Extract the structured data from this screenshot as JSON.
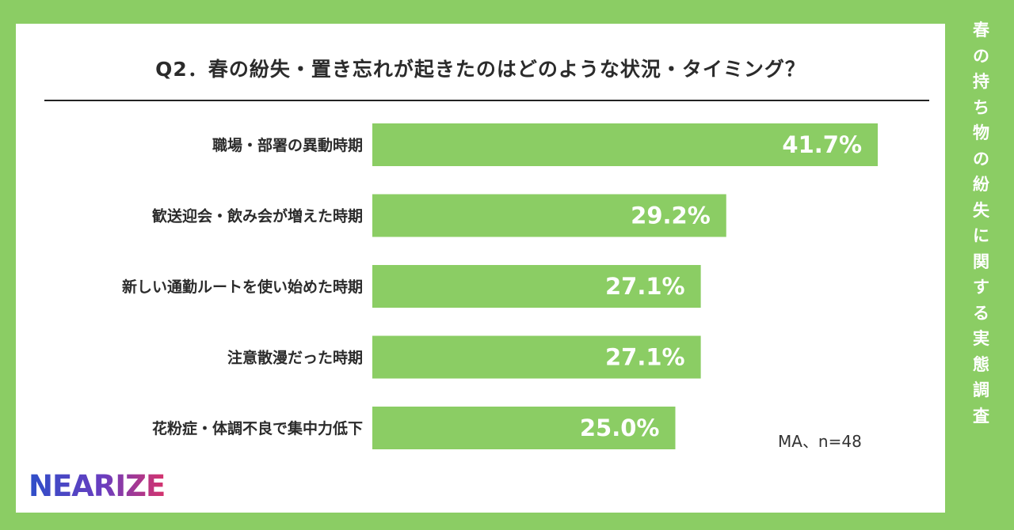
{
  "title": "Q2．春の紛失・置き忘れが起きたのはどのような状況・タイミング？",
  "note": "MA、n=48",
  "logo": "NEARIZE",
  "side_title": "春の持ち物の紛失に関する実態調査",
  "colors": {
    "background": "#8bcd64",
    "bar": "#8bcd64",
    "card": "#ffffff"
  },
  "chart_data": {
    "type": "bar",
    "orientation": "horizontal",
    "title": "Q2．春の紛失・置き忘れが起きたのはどのような状況・タイミング？",
    "categories": [
      "職場・部署の異動時期",
      "歓送迎会・飲み会が増えた時期",
      "新しい通勤ルートを使い始めた時期",
      "注意散漫だった時期",
      "花粉症・体調不良で集中力低下"
    ],
    "values": [
      41.7,
      29.2,
      27.1,
      27.1,
      25.0
    ],
    "value_labels": [
      "41.7%",
      "29.2%",
      "27.1%",
      "27.1%",
      "25.0%"
    ],
    "unit": "%",
    "xlim": [
      0,
      41.7
    ],
    "grid": false
  }
}
